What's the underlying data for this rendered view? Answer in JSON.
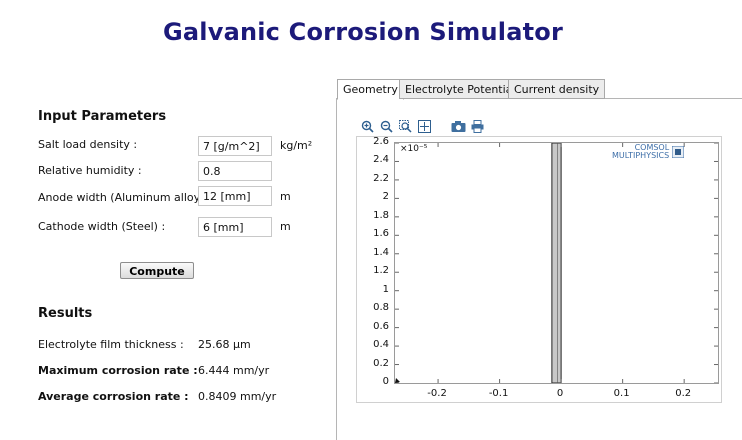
{
  "title": "Galvanic Corrosion Simulator",
  "inputs": {
    "heading": "Input Parameters",
    "salt": {
      "label": "Salt load density :",
      "value": "7 [g/m^2]",
      "unit": "kg/m²"
    },
    "humidity": {
      "label": "Relative humidity :",
      "value": "0.8"
    },
    "anode": {
      "label": "Anode width (Aluminum alloy) :",
      "value": "12 [mm]",
      "unit": "m"
    },
    "cathode": {
      "label": "Cathode width (Steel) :",
      "value": "6 [mm]",
      "unit": "m"
    },
    "compute": "Compute"
  },
  "results": {
    "heading": "Results",
    "film": {
      "label": "Electrolyte film thickness :",
      "value": "25.68 µm"
    },
    "max": {
      "label": "Maximum corrosion rate :",
      "value": "6.444 mm/yr"
    },
    "avg": {
      "label": "Average corrosion rate :",
      "value": "0.8409 mm/yr"
    }
  },
  "tabs": [
    "Geometry",
    "Electrolyte Potential",
    "Current density"
  ],
  "plot": {
    "exponent_label": "×10⁻⁵",
    "logo_line1": "COMSOL",
    "logo_line2": "MULTIPHYSICS",
    "toolbar_icons": [
      "zoom-in-icon",
      "zoom-out-icon",
      "zoom-box-icon",
      "zoom-extents-icon",
      "camera-icon",
      "print-icon"
    ]
  },
  "chart_data": {
    "type": "geometry",
    "x_ticks": [
      "-0.2",
      "-0.1",
      "0",
      "0.1",
      "0.2"
    ],
    "y_ticks": [
      "0",
      "0.2",
      "0.4",
      "0.6",
      "0.8",
      "1",
      "1.2",
      "1.4",
      "1.6",
      "1.8",
      "2",
      "2.2",
      "2.4",
      "2.6"
    ],
    "x_range": [
      -0.27,
      0.255
    ],
    "y_range": [
      0,
      2.6
    ],
    "rectangle": {
      "x": [
        -0.015,
        0.0
      ],
      "y": [
        0,
        2.6
      ]
    }
  }
}
